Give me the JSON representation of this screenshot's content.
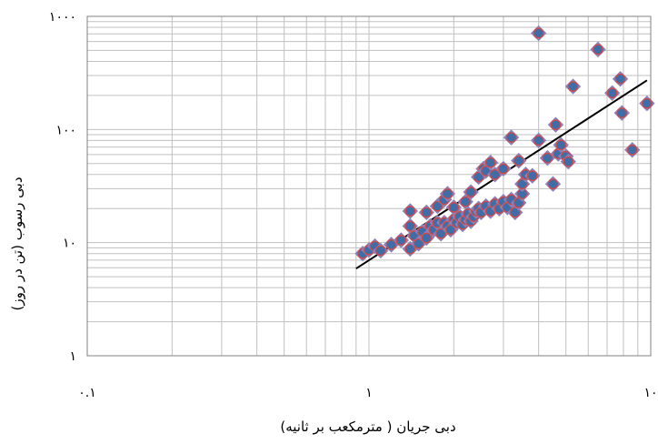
{
  "chart_data": {
    "type": "scatter",
    "title": "",
    "xlabel": "دبی جریان ( مترمکعب بر ثانیه)",
    "ylabel": "دبی رسوب (تن در روز)",
    "x_scale": "log",
    "y_scale": "log",
    "xlim": [
      0.1,
      10
    ],
    "ylim": [
      1,
      1000
    ],
    "x_ticks": [
      0.1,
      1,
      10
    ],
    "x_tick_labels": [
      "۰.۱",
      "۱",
      "۱۰"
    ],
    "y_ticks": [
      1,
      10,
      100,
      1000
    ],
    "y_tick_labels": [
      "۱",
      "۱۰",
      "۱۰۰",
      "۱۰۰۰"
    ],
    "grid": true,
    "legend": "none",
    "colors": {
      "diamond_fill": "#8c82ba",
      "diamond_stroke": "#8c82ba",
      "circle_fill": "#3e6da8",
      "circle_stroke": "#cf4a4a",
      "trendline": "#000000",
      "grid": "#c0c0c0"
    },
    "series": [
      {
        "marker": "diamond-circle",
        "points": [
          [
            0.95,
            8.0
          ],
          [
            1.0,
            8.6
          ],
          [
            1.05,
            9.3
          ],
          [
            1.1,
            8.5
          ],
          [
            1.2,
            9.6
          ],
          [
            1.3,
            10.5
          ],
          [
            1.4,
            8.8
          ],
          [
            1.4,
            14.0
          ],
          [
            1.45,
            11.5
          ],
          [
            1.5,
            9.8
          ],
          [
            1.55,
            12.5
          ],
          [
            1.6,
            11.0
          ],
          [
            1.65,
            14.0
          ],
          [
            1.7,
            13.0
          ],
          [
            1.75,
            15.0
          ],
          [
            1.8,
            12.0
          ],
          [
            1.85,
            15.0
          ],
          [
            1.9,
            14.0
          ],
          [
            1.95,
            13.0
          ],
          [
            2.0,
            16.0
          ],
          [
            2.05,
            15.0
          ],
          [
            2.1,
            17.0
          ],
          [
            2.15,
            14.5
          ],
          [
            2.2,
            16.0
          ],
          [
            2.25,
            18.0
          ],
          [
            2.3,
            15.5
          ],
          [
            2.35,
            17.0
          ],
          [
            2.4,
            19.0
          ],
          [
            2.45,
            20.0
          ],
          [
            2.5,
            18.5
          ],
          [
            2.6,
            21.0
          ],
          [
            2.7,
            19.0
          ],
          [
            2.8,
            22.0
          ],
          [
            2.9,
            20.0
          ],
          [
            3.0,
            23.0
          ],
          [
            3.1,
            20.5
          ],
          [
            3.2,
            24.0
          ],
          [
            3.3,
            18.5
          ],
          [
            3.4,
            22.5
          ],
          [
            3.5,
            27.0
          ],
          [
            1.4,
            19.0
          ],
          [
            1.6,
            18.5
          ],
          [
            1.75,
            21.0
          ],
          [
            1.85,
            24.0
          ],
          [
            1.9,
            27.0
          ],
          [
            2.0,
            20.5
          ],
          [
            2.2,
            23.0
          ],
          [
            2.3,
            28.0
          ],
          [
            2.45,
            38.0
          ],
          [
            2.55,
            45.0
          ],
          [
            2.6,
            43.0
          ],
          [
            2.7,
            51.0
          ],
          [
            2.8,
            40.0
          ],
          [
            3.0,
            45.0
          ],
          [
            3.2,
            85.0
          ],
          [
            3.4,
            53.0
          ],
          [
            3.5,
            33.0
          ],
          [
            3.6,
            40.0
          ],
          [
            3.8,
            39.0
          ],
          [
            4.0,
            80.0
          ],
          [
            4.3,
            56.0
          ],
          [
            4.5,
            33.0
          ],
          [
            4.6,
            110.0
          ],
          [
            4.7,
            61.0
          ],
          [
            4.8,
            73.0
          ],
          [
            5.0,
            58.0
          ],
          [
            5.1,
            52.0
          ],
          [
            5.3,
            240.0
          ],
          [
            4.0,
            710.0
          ],
          [
            6.5,
            510.0
          ],
          [
            7.3,
            210.0
          ],
          [
            7.8,
            280.0
          ],
          [
            7.9,
            140.0
          ],
          [
            8.6,
            66.0
          ],
          [
            9.7,
            170.0
          ]
        ]
      }
    ],
    "trendline": {
      "x": [
        0.9,
        9.7
      ],
      "y": [
        5.9,
        272.0
      ]
    }
  }
}
